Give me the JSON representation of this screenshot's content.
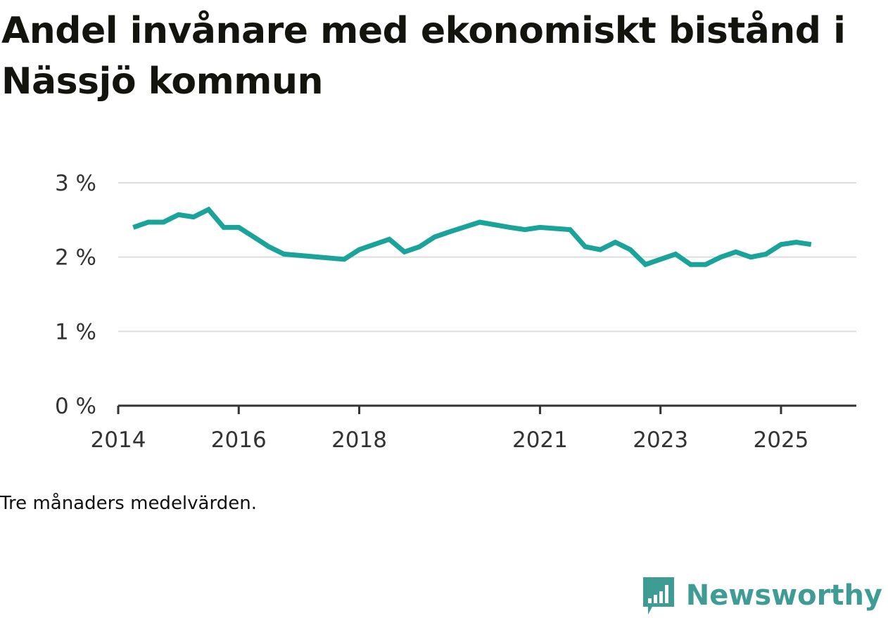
{
  "title": "Andel invånare med ekonomiskt bistånd i Nässjö kommun",
  "note": "Tre månaders medelvärden.",
  "brand": {
    "name": "Newsworthy",
    "icon": "bar-chart-speech-bubble-icon",
    "color": "#3e9c95"
  },
  "colors": {
    "line": "#1aa39a",
    "grid": "#dddddd",
    "axis": "#333333"
  },
  "chart_data": {
    "type": "line",
    "title": "Andel invånare med ekonomiskt bistånd i Nässjö kommun",
    "xlabel": "",
    "ylabel": "",
    "x_range": [
      2014.0,
      2026.25
    ],
    "ylim": [
      0,
      3
    ],
    "y_ticks": [
      {
        "value": 0,
        "label": "0 %"
      },
      {
        "value": 1,
        "label": "1 %"
      },
      {
        "value": 2,
        "label": "2 %"
      },
      {
        "value": 3,
        "label": "3 %"
      }
    ],
    "x_ticks": [
      {
        "value": 2014,
        "label": "2014"
      },
      {
        "value": 2016,
        "label": "2016"
      },
      {
        "value": 2018,
        "label": "2018"
      },
      {
        "value": 2021,
        "label": "2021"
      },
      {
        "value": 2023,
        "label": "2023"
      },
      {
        "value": 2025,
        "label": "2025"
      }
    ],
    "grid": true,
    "series": [
      {
        "name": "Andel invånare med ekonomiskt bistånd",
        "x": [
          2014.25,
          2014.5,
          2014.75,
          2015.0,
          2015.25,
          2015.5,
          2015.75,
          2016.0,
          2016.25,
          2016.5,
          2016.75,
          2017.75,
          2018.0,
          2018.25,
          2018.5,
          2018.75,
          2019.0,
          2019.25,
          2019.5,
          2020.0,
          2020.5,
          2020.75,
          2021.0,
          2021.5,
          2021.75,
          2022.0,
          2022.25,
          2022.5,
          2022.75,
          2023.0,
          2023.25,
          2023.5,
          2023.75,
          2024.0,
          2024.25,
          2024.5,
          2024.75,
          2025.0,
          2025.25,
          2025.5
        ],
        "values": [
          2.4,
          2.47,
          2.47,
          2.57,
          2.54,
          2.64,
          2.4,
          2.4,
          2.27,
          2.14,
          2.04,
          1.97,
          2.1,
          2.17,
          2.24,
          2.07,
          2.14,
          2.27,
          2.34,
          2.47,
          2.4,
          2.37,
          2.4,
          2.37,
          2.14,
          2.1,
          2.2,
          2.1,
          1.9,
          1.97,
          2.04,
          1.9,
          1.9,
          2.0,
          2.07,
          2.0,
          2.04,
          2.17,
          2.2,
          2.17
        ]
      }
    ]
  }
}
